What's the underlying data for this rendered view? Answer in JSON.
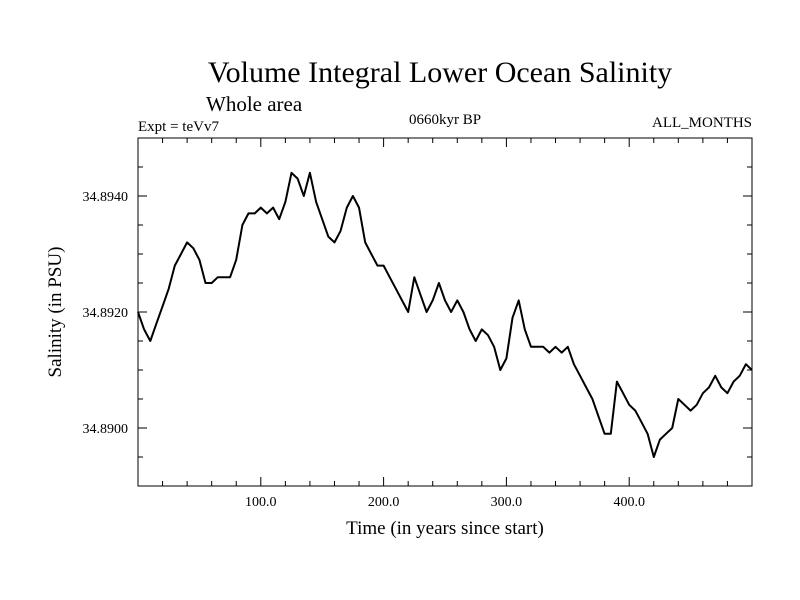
{
  "chart_data": {
    "type": "line",
    "title": "Volume Integral Lower Ocean Salinity",
    "subtitle": "Whole area",
    "header_left": "Expt = teVv7",
    "header_center": "0660kyr BP",
    "header_right": "ALL_MONTHS",
    "xlabel": "Time (in years since start)",
    "ylabel": "Salinity (in PSU)",
    "xlim": [
      0,
      500
    ],
    "ylim": [
      34.889,
      34.895
    ],
    "x_ticks": [
      100,
      200,
      300,
      400
    ],
    "x_tick_labels": [
      "100.0",
      "200.0",
      "300.0",
      "400.0"
    ],
    "y_ticks": [
      34.89,
      34.892,
      34.894
    ],
    "y_tick_labels": [
      "34.8900",
      "34.8920",
      "34.8940"
    ],
    "grid": false,
    "line_color": "#000000",
    "series": [
      {
        "x": [
          0,
          5,
          10,
          15,
          20,
          25,
          30,
          35,
          40,
          45,
          50,
          55,
          60,
          65,
          70,
          75,
          80,
          85,
          90,
          95,
          100,
          105,
          110,
          115,
          120,
          125,
          130,
          135,
          140,
          145,
          150,
          155,
          160,
          165,
          170,
          175,
          180,
          185,
          190,
          195,
          200,
          205,
          210,
          215,
          220,
          225,
          230,
          235,
          240,
          245,
          250,
          255,
          260,
          265,
          270,
          275,
          280,
          285,
          290,
          295,
          300,
          305,
          310,
          315,
          320,
          325,
          330,
          335,
          340,
          345,
          350,
          355,
          360,
          365,
          370,
          375,
          380,
          385,
          390,
          395,
          400,
          405,
          410,
          415,
          420,
          425,
          430,
          435,
          440,
          445,
          450,
          455,
          460,
          465,
          470,
          475,
          480,
          485,
          490,
          495,
          500
        ],
        "y": [
          34.892,
          34.8917,
          34.8915,
          34.8918,
          34.8921,
          34.8924,
          34.8928,
          34.893,
          34.8932,
          34.8931,
          34.8929,
          34.8925,
          34.8925,
          34.8926,
          34.8926,
          34.8926,
          34.8929,
          34.8935,
          34.8937,
          34.8937,
          34.8938,
          34.8937,
          34.8938,
          34.8936,
          34.8939,
          34.8944,
          34.8943,
          34.894,
          34.8944,
          34.8939,
          34.8936,
          34.8933,
          34.8932,
          34.8934,
          34.8938,
          34.894,
          34.8938,
          34.8932,
          34.893,
          34.8928,
          34.8928,
          34.8926,
          34.8924,
          34.8922,
          34.892,
          34.8926,
          34.8923,
          34.892,
          34.8922,
          34.8925,
          34.8922,
          34.892,
          34.8922,
          34.892,
          34.8917,
          34.8915,
          34.8917,
          34.8916,
          34.8914,
          34.891,
          34.8912,
          34.8919,
          34.8922,
          34.8917,
          34.8914,
          34.8914,
          34.8914,
          34.8913,
          34.8914,
          34.8913,
          34.8914,
          34.8911,
          34.8909,
          34.8907,
          34.8905,
          34.8902,
          34.8899,
          34.8899,
          34.8908,
          34.8906,
          34.8904,
          34.8903,
          34.8901,
          34.8899,
          34.8895,
          34.8898,
          34.8899,
          34.89,
          34.8905,
          34.8904,
          34.8903,
          34.8904,
          34.8906,
          34.8907,
          34.8909,
          34.8907,
          34.8906,
          34.8908,
          34.8909,
          34.8911,
          34.891
        ]
      }
    ]
  }
}
